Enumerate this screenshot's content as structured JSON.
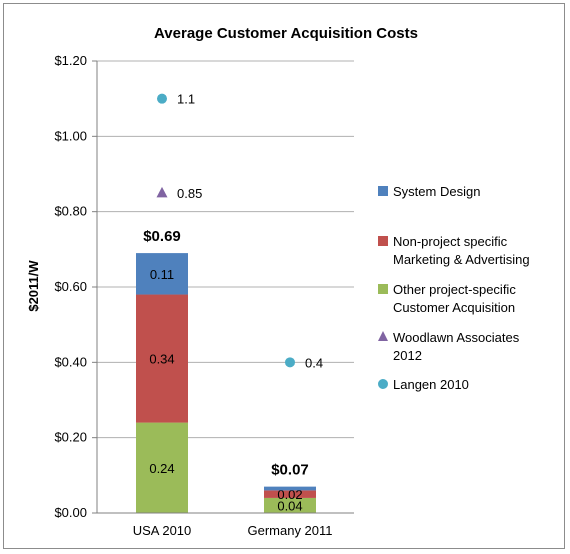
{
  "chart_data": {
    "type": "bar",
    "title": "Average Customer Acquisition Costs",
    "ylabel": "$2011/W",
    "xlabel": "",
    "ylim": [
      0,
      1.2
    ],
    "yticks": [
      {
        "value": 0.0,
        "label": "$0.00"
      },
      {
        "value": 0.2,
        "label": "$0.20"
      },
      {
        "value": 0.4,
        "label": "$0.40"
      },
      {
        "value": 0.6,
        "label": "$0.60"
      },
      {
        "value": 0.8,
        "label": "$0.80"
      },
      {
        "value": 1.0,
        "label": "$1.00"
      },
      {
        "value": 1.2,
        "label": "$1.20"
      }
    ],
    "grid": true,
    "legend_position": "right",
    "categories": [
      "USA 2010",
      "Germany 2011"
    ],
    "stacked": true,
    "series": [
      {
        "name": "Other project-specific Customer Acquisition",
        "legend_lines": [
          "Other project-specific",
          "Customer Acquisition"
        ],
        "color": "#9bbb59",
        "values": [
          0.24,
          0.04
        ],
        "labels": [
          "0.24",
          "0.04"
        ]
      },
      {
        "name": "Non-project specific Marketing & Advertising",
        "legend_lines": [
          "Non-project specific",
          "Marketing & Advertising"
        ],
        "color": "#c0504d",
        "values": [
          0.34,
          0.02
        ],
        "labels": [
          "0.34",
          "0.02"
        ]
      },
      {
        "name": "System Design",
        "legend_lines": [
          "System Design"
        ],
        "color": "#4f81bd",
        "values": [
          0.11,
          0.01
        ],
        "labels": [
          "0.11",
          ""
        ]
      }
    ],
    "totals": [
      "$0.69",
      "$0.07"
    ],
    "total_values": [
      0.69,
      0.07
    ],
    "markers": [
      {
        "name": "Woodlawn Associates 2012",
        "legend_lines": [
          "Woodlawn Associates",
          "2012"
        ],
        "shape": "triangle",
        "color": "#8064a2",
        "points": [
          {
            "category": "USA 2010",
            "value": 0.85,
            "label": "0.85"
          }
        ]
      },
      {
        "name": "Langen 2010",
        "legend_lines": [
          "Langen 2010"
        ],
        "shape": "circle",
        "color": "#4bacc6",
        "points": [
          {
            "category": "USA 2010",
            "value": 1.1,
            "label": "1.1"
          },
          {
            "category": "Germany 2011",
            "value": 0.4,
            "label": "0.4"
          }
        ]
      }
    ],
    "legend_order": [
      "System Design",
      "Non-project specific Marketing & Advertising",
      "Other project-specific Customer Acquisition",
      "Woodlawn Associates 2012",
      "Langen 2010"
    ]
  }
}
